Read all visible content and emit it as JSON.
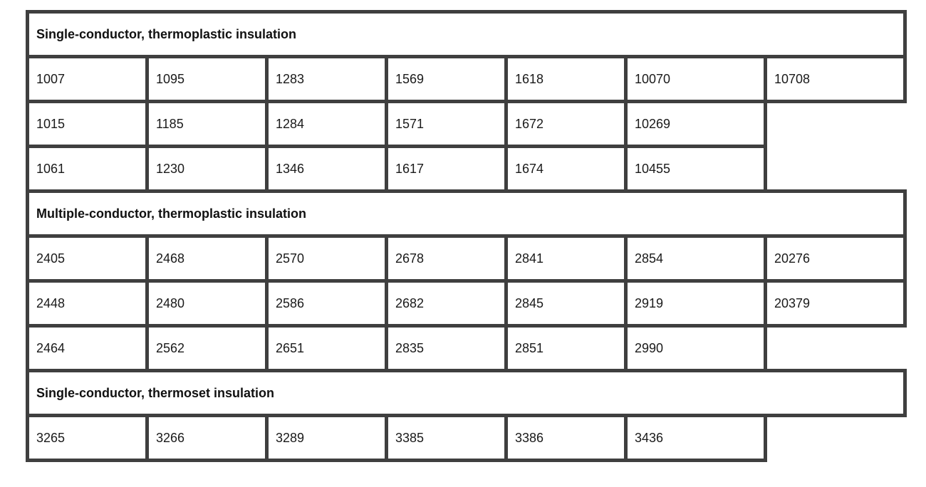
{
  "page": {
    "background_color": "#ffffff",
    "border_color": "#3f3f3f",
    "text_color": "#1a1a1a"
  },
  "table": {
    "columns": 7,
    "sections": [
      {
        "header": "Single-conductor, thermoplastic insulation",
        "rows": [
          [
            "1007",
            "1095",
            "1283",
            "1569",
            "1618",
            "10070",
            "10708"
          ],
          [
            "1015",
            "1185",
            "1284",
            "1571",
            "1672",
            "10269"
          ],
          [
            "1061",
            "1230",
            "1346",
            "1617",
            "1674",
            "10455"
          ]
        ]
      },
      {
        "header": "Multiple-conductor, thermoplastic insulation",
        "rows": [
          [
            "2405",
            "2468",
            "2570",
            "2678",
            "2841",
            "2854",
            "20276"
          ],
          [
            "2448",
            "2480",
            "2586",
            "2682",
            "2845",
            "2919",
            "20379"
          ],
          [
            "2464",
            "2562",
            "2651",
            "2835",
            "2851",
            "2990"
          ]
        ]
      },
      {
        "header": "Single-conductor, thermoset insulation",
        "rows": [
          [
            "3265",
            "3266",
            "3289",
            "3385",
            "3386",
            "3436"
          ]
        ]
      }
    ]
  }
}
